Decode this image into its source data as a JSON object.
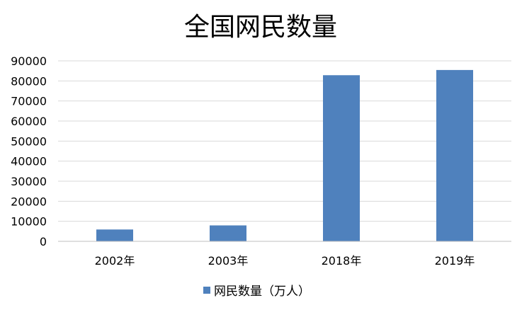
{
  "chart_data": {
    "type": "bar",
    "title": "全国网民数量",
    "categories": [
      "2002年",
      "2003年",
      "2018年",
      "2019年"
    ],
    "series": [
      {
        "name": "网民数量（万人）",
        "values": [
          5910,
          7950,
          82851,
          85449
        ],
        "color": "#4f81bd"
      }
    ],
    "ylim": [
      0,
      90000
    ],
    "yticks": [
      0,
      10000,
      20000,
      30000,
      40000,
      50000,
      60000,
      70000,
      80000,
      90000
    ],
    "grid": true,
    "legend_position": "bottom"
  }
}
